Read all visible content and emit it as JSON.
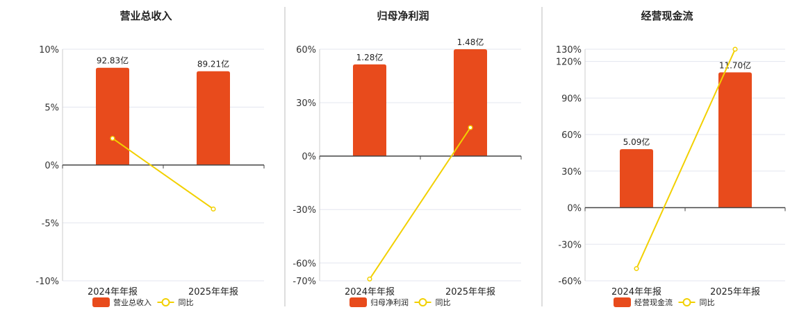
{
  "chart_data": [
    {
      "type": "bar",
      "title": "营业总收入",
      "categories": [
        "2024年年报",
        "2025年年报"
      ],
      "series": [
        {
          "name": "营业总收入",
          "kind": "bar",
          "values": [
            8.4,
            8.1
          ],
          "labels": [
            "92.83亿",
            "89.21亿"
          ]
        },
        {
          "name": "同比",
          "kind": "line",
          "values": [
            2.3,
            -3.8
          ]
        }
      ],
      "ylim": [
        -10,
        10
      ],
      "yticks": [
        10,
        5,
        0,
        -5,
        -10
      ],
      "ytick_labels": [
        "10%",
        "5%",
        "0%",
        "-5%",
        "-10%"
      ],
      "grid": true
    },
    {
      "type": "bar",
      "title": "归母净利润",
      "categories": [
        "2024年年报",
        "2025年年报"
      ],
      "series": [
        {
          "name": "归母净利润",
          "kind": "bar",
          "values": [
            51.5,
            60.0
          ],
          "labels": [
            "1.28亿",
            "1.48亿"
          ]
        },
        {
          "name": "同比",
          "kind": "line",
          "values": [
            -69,
            16
          ]
        }
      ],
      "ylim": [
        -70,
        60
      ],
      "yticks": [
        60,
        30,
        0,
        -30,
        -60,
        -70
      ],
      "ytick_labels": [
        "60%",
        "30%",
        "0%",
        "-30%",
        "-60%",
        "-70%"
      ],
      "grid": true
    },
    {
      "type": "bar",
      "title": "经营现金流",
      "categories": [
        "2024年年报",
        "2025年年报"
      ],
      "series": [
        {
          "name": "经营现金流",
          "kind": "bar",
          "values": [
            48,
            111
          ],
          "labels": [
            "5.09亿",
            "11.70亿"
          ]
        },
        {
          "name": "同比",
          "kind": "line",
          "values": [
            -50,
            130
          ]
        }
      ],
      "ylim": [
        -60,
        130
      ],
      "yticks": [
        130,
        120,
        90,
        60,
        30,
        0,
        -30,
        -60
      ],
      "ytick_labels": [
        "130%",
        "120%",
        "90%",
        "60%",
        "30%",
        "0%",
        "-30%",
        "-60%"
      ],
      "grid": true
    }
  ],
  "colors": {
    "bar": "#E84B1C",
    "line": "#F2D000",
    "axis": "#444444",
    "grid": "#E3E6EF",
    "divider": "#BBBBBB"
  }
}
